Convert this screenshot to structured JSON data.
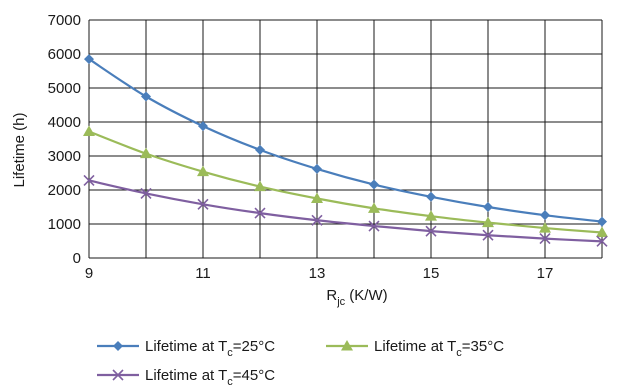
{
  "chart_data": {
    "type": "line",
    "xlabel": {
      "main": "R",
      "sub": "jc",
      "rest": " (K/W)"
    },
    "ylabel": "Lifetime (h)",
    "xlim": [
      9,
      18
    ],
    "ylim": [
      0,
      7000
    ],
    "xticks": [
      "9",
      "11",
      "13",
      "15",
      "17"
    ],
    "yticks": [
      "0",
      "1000",
      "2000",
      "3000",
      "4000",
      "5000",
      "6000",
      "7000"
    ],
    "grid": true,
    "legend_position": "bottom",
    "x": [
      9,
      10,
      11,
      12,
      13,
      14,
      15,
      16,
      17,
      18
    ],
    "series": [
      {
        "name": "Lifetime at Tc=25°C",
        "label_parts": {
          "pre": "Lifetime at T",
          "sub": "c",
          "post": "=25°C"
        },
        "marker": "diamond",
        "color": "#4a7ebb",
        "values": [
          5850,
          4750,
          3880,
          3180,
          2620,
          2160,
          1800,
          1500,
          1260,
          1070
        ]
      },
      {
        "name": "Lifetime at Tc=35°C",
        "label_parts": {
          "pre": "Lifetime at T",
          "sub": "c",
          "post": "=35°C"
        },
        "marker": "triangle",
        "color": "#9bbb59",
        "values": [
          3720,
          3070,
          2540,
          2100,
          1750,
          1460,
          1230,
          1040,
          880,
          750
        ]
      },
      {
        "name": "Lifetime at Tc=45°C",
        "label_parts": {
          "pre": "Lifetime at T",
          "sub": "c",
          "post": "=45°C"
        },
        "marker": "x",
        "color": "#7f5fa0",
        "values": [
          2280,
          1900,
          1580,
          1320,
          1110,
          940,
          790,
          670,
          570,
          490
        ]
      }
    ]
  }
}
